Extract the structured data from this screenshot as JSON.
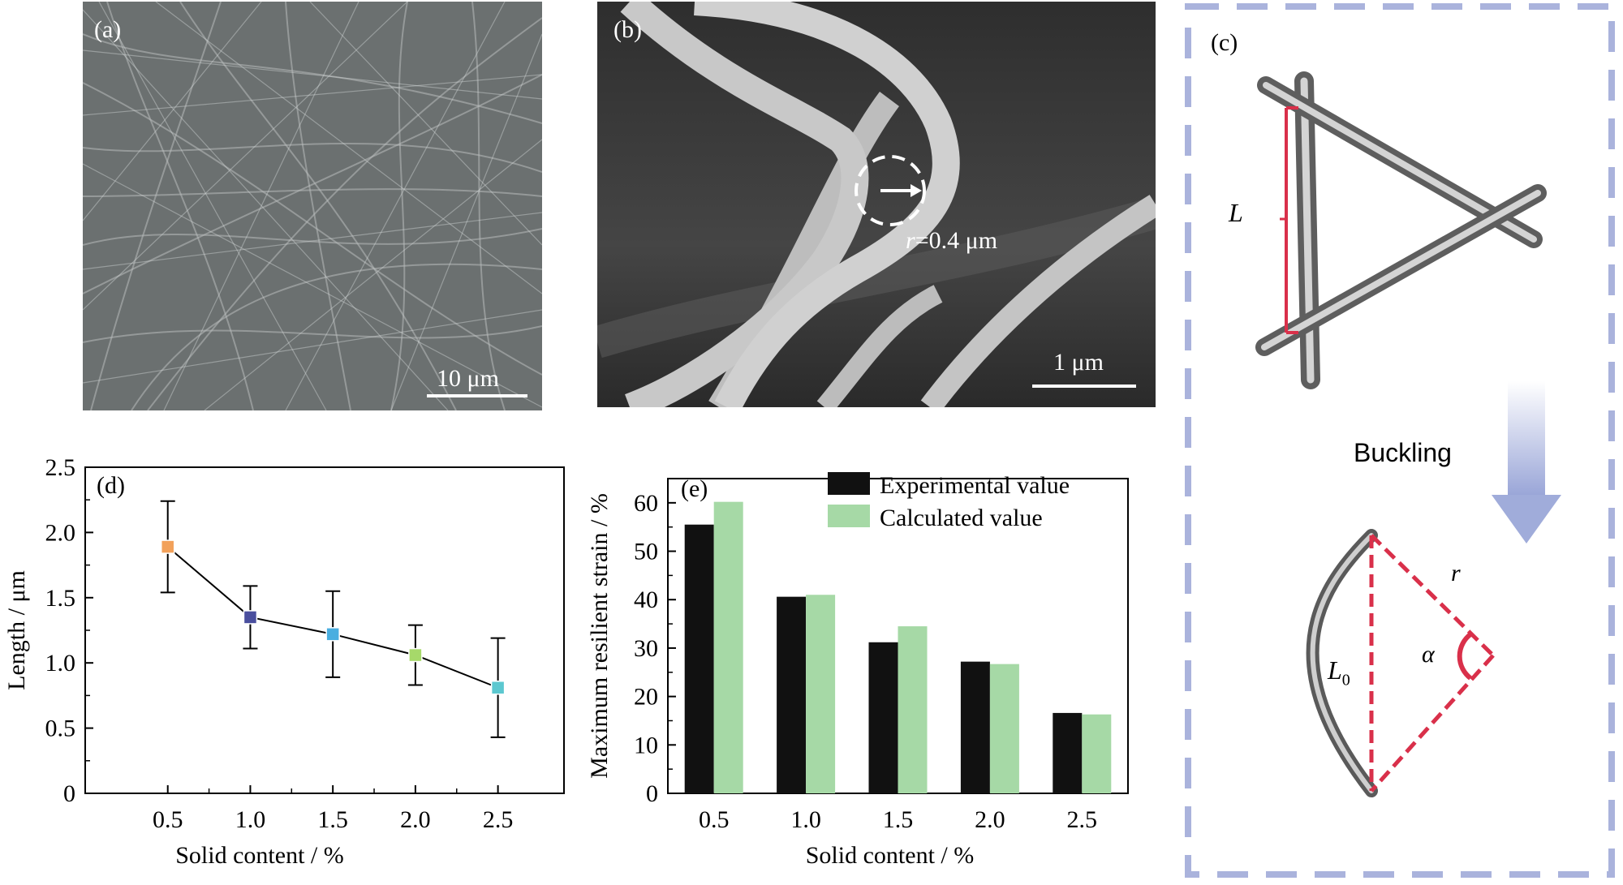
{
  "panel_a": {
    "label": "(a)",
    "scale_bar": "10 μm"
  },
  "panel_b": {
    "label": "(b)",
    "scale_bar": "1 μm",
    "radius_var": "r",
    "radius_text": "=0.4 μm"
  },
  "panel_c": {
    "label": "(c)",
    "length_label": "L",
    "buckling_label": "Buckling",
    "radius_label": "r",
    "chord_label": "L",
    "chord_subscript": "0",
    "angle_label": "α"
  },
  "chart_data": [
    {
      "type": "line",
      "panel_label": "(d)",
      "xlabel": "Solid content / %",
      "ylabel": "Length / μm",
      "x": [
        0.5,
        1.0,
        1.5,
        2.0,
        2.5
      ],
      "x_tick_labels": [
        "0.5",
        "1.0",
        "1.5",
        "2.0",
        "2.5"
      ],
      "y": [
        1.89,
        1.35,
        1.22,
        1.06,
        0.81
      ],
      "y_err_upper": [
        0.35,
        0.24,
        0.33,
        0.23,
        0.38
      ],
      "y_err_lower": [
        0.35,
        0.24,
        0.33,
        0.23,
        0.38
      ],
      "xlim": [
        0.0,
        2.9
      ],
      "ylim": [
        0,
        2.5
      ],
      "y_ticks": [
        "0",
        "0.5",
        "1.0",
        "1.5",
        "2.0",
        "2.5"
      ],
      "marker_colors": [
        "#f2a15a",
        "#4a4f9e",
        "#4aaee0",
        "#a6d96a",
        "#5cc8d0"
      ]
    },
    {
      "type": "bar",
      "panel_label": "(e)",
      "xlabel": "Solid content / %",
      "ylabel": "Maximum resilient strain / %",
      "categories": [
        "0.5",
        "1.0",
        "1.5",
        "2.0",
        "2.5"
      ],
      "series": [
        {
          "name": "Experimental value",
          "values": [
            55.5,
            40.6,
            31.2,
            27.2,
            16.6
          ],
          "color": "#111111"
        },
        {
          "name": "Calculated value",
          "values": [
            60.2,
            41.0,
            34.5,
            26.7,
            16.3
          ],
          "color": "#a6d9a6"
        }
      ],
      "ylim": [
        0,
        65
      ],
      "y_ticks": [
        "0",
        "10",
        "20",
        "30",
        "40",
        "50",
        "60"
      ],
      "legend": "top-right"
    }
  ]
}
